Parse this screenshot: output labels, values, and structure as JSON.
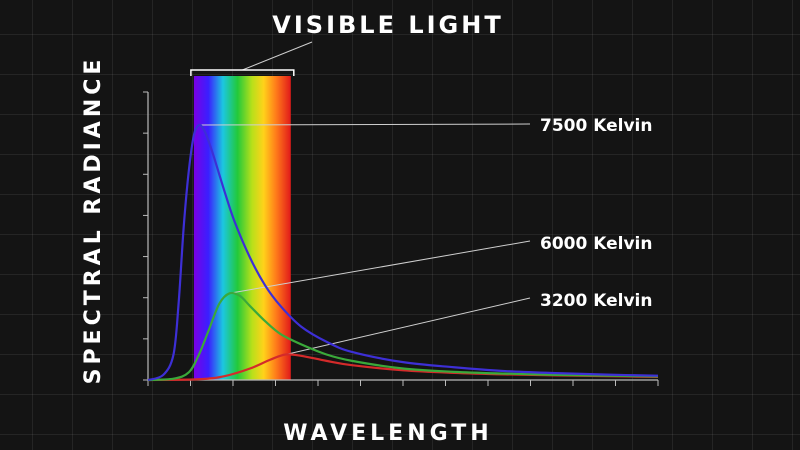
{
  "chart_data": {
    "type": "line",
    "title": "VISIBLE LIGHT",
    "xlabel": "WAVELENGTH",
    "ylabel": "SPECTRAL RADIANCE",
    "xlim": [
      0,
      1
    ],
    "ylim": [
      0,
      1
    ],
    "grid": true,
    "legend": "direct labels",
    "visible_band": [
      0.09,
      0.28
    ],
    "series": [
      {
        "name": "7500 Kelvin",
        "color": "#3d2fd6",
        "x": [
          0.0,
          0.03,
          0.05,
          0.06,
          0.07,
          0.08,
          0.09,
          0.1,
          0.11,
          0.12,
          0.13,
          0.15,
          0.17,
          0.2,
          0.23,
          0.26,
          0.3,
          0.35,
          0.4,
          0.5,
          0.6,
          0.7,
          0.8,
          0.9,
          1.0
        ],
        "values": [
          0.0,
          0.02,
          0.1,
          0.3,
          0.6,
          0.82,
          0.96,
          1.0,
          0.98,
          0.93,
          0.87,
          0.74,
          0.62,
          0.48,
          0.37,
          0.29,
          0.21,
          0.15,
          0.11,
          0.07,
          0.05,
          0.035,
          0.027,
          0.021,
          0.017
        ]
      },
      {
        "name": "6000 Kelvin",
        "color": "#3aa93a",
        "x": [
          0.0,
          0.05,
          0.08,
          0.1,
          0.12,
          0.14,
          0.16,
          0.18,
          0.2,
          0.23,
          0.26,
          0.3,
          0.35,
          0.4,
          0.5,
          0.6,
          0.7,
          0.8,
          0.9,
          1.0
        ],
        "values": [
          0.0,
          0.005,
          0.03,
          0.1,
          0.2,
          0.3,
          0.34,
          0.33,
          0.29,
          0.23,
          0.18,
          0.14,
          0.1,
          0.075,
          0.045,
          0.032,
          0.025,
          0.02,
          0.017,
          0.014
        ]
      },
      {
        "name": "3200 Kelvin",
        "color": "#d42a2a",
        "x": [
          0.0,
          0.1,
          0.15,
          0.2,
          0.24,
          0.27,
          0.3,
          0.35,
          0.4,
          0.5,
          0.6,
          0.7,
          0.8,
          0.9,
          1.0
        ],
        "values": [
          0.0,
          0.003,
          0.015,
          0.045,
          0.08,
          0.1,
          0.095,
          0.075,
          0.058,
          0.038,
          0.028,
          0.022,
          0.018,
          0.015,
          0.012
        ]
      }
    ]
  }
}
